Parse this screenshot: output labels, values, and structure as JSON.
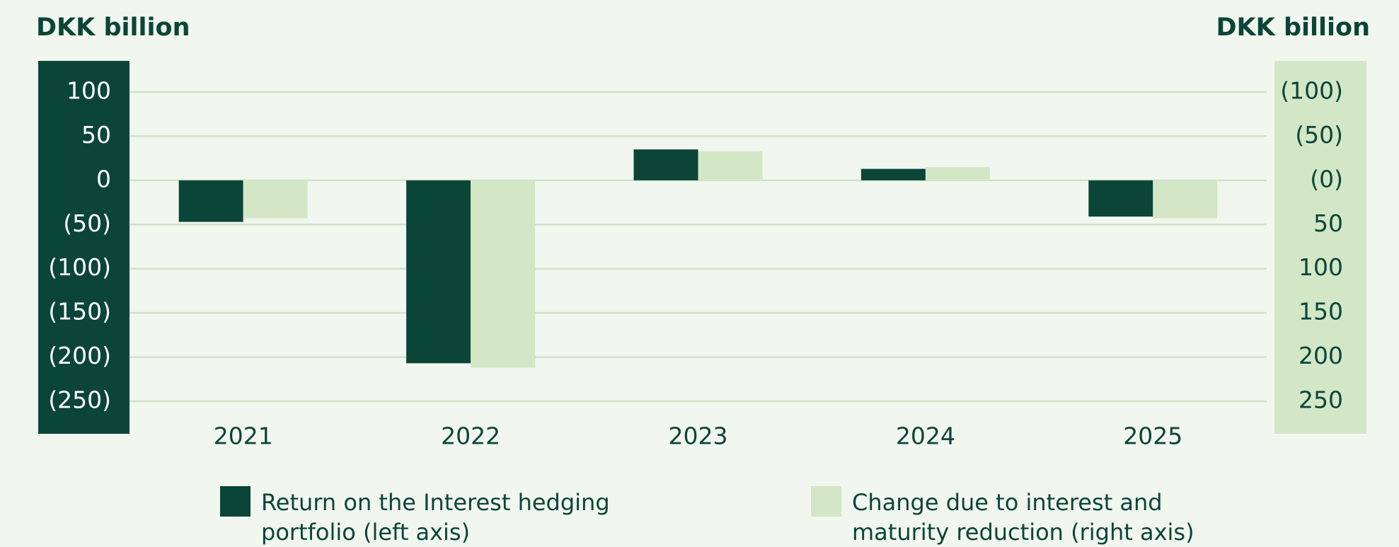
{
  "chart_data": {
    "type": "bar",
    "y_axis_title": "DKK billion",
    "y2_axis_title": "DKK billion",
    "categories": [
      "2021",
      "2022",
      "2023",
      "2024",
      "2025"
    ],
    "series": [
      {
        "name": "Return on the Interest hedging portfolio (left axis)",
        "color": "#0b4538",
        "values": [
          -47,
          -207,
          35,
          13,
          -41
        ]
      },
      {
        "name": "Change due to interest and maturity reduction (right axis)",
        "color": "#d3e7c7",
        "axis": "y2",
        "values": [
          43,
          212,
          -33,
          -15,
          43
        ]
      }
    ],
    "ylim": [
      -250,
      100
    ],
    "yticks": [
      100,
      50,
      0,
      {
        "value": -50,
        "label": "(50)"
      },
      {
        "value": -100,
        "label": "(100)"
      },
      {
        "value": -150,
        "label": "(150)"
      },
      {
        "value": -200,
        "label": "(200)"
      },
      {
        "value": -250,
        "label": "(250)"
      }
    ],
    "y2lim": [
      250,
      -100
    ],
    "y2ticks": [
      {
        "value": -100,
        "label": "(100)"
      },
      {
        "value": -50,
        "label": "(50)"
      },
      {
        "value": 0,
        "label": "(0)"
      },
      50,
      100,
      150,
      200,
      250
    ],
    "grid": true
  }
}
